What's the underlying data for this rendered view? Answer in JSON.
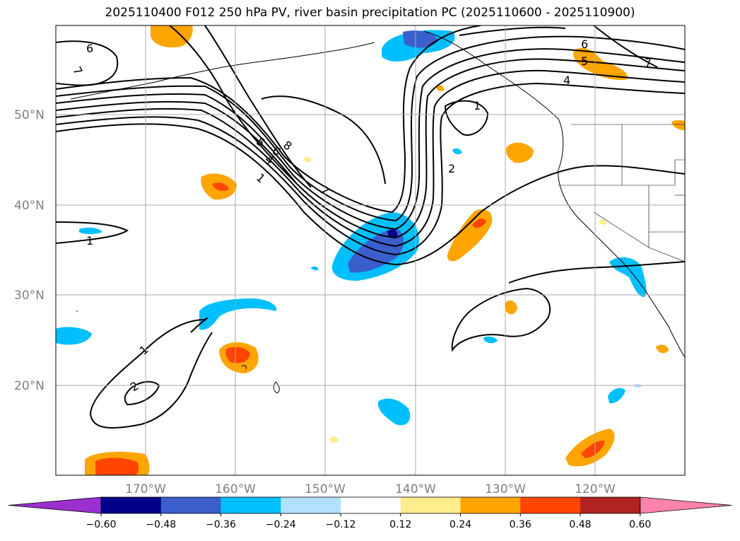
{
  "title": "2025110400 F012 250 hPa PV, river basin precipitation PC (2025110600 - 2025110900)",
  "map": {
    "lat_ticks": [
      "50°N",
      "40°N",
      "30°N",
      "20°N"
    ],
    "lon_ticks": [
      "170°W",
      "160°W",
      "150°W",
      "140°W",
      "130°W",
      "120°W"
    ],
    "pv_contour_labels": [
      "6",
      "7",
      "6",
      "7",
      "5",
      "4",
      "1",
      "2",
      "8",
      "6",
      "4",
      "5",
      "1",
      "7",
      "1",
      "1",
      "2"
    ],
    "gridlines": true
  },
  "colorbar": {
    "extend": "both",
    "ticks": [
      "−0.60",
      "−0.48",
      "−0.36",
      "−0.24",
      "−0.12",
      "0.12",
      "0.24",
      "0.36",
      "0.48",
      "0.60"
    ],
    "colors": {
      "under": "#9b30d0",
      "bins": [
        "#00008b",
        "#3a5fcd",
        "#00bfff",
        "#b0e2ff",
        "#ffffff",
        "#ffec8b",
        "#ffa500",
        "#ff4500",
        "#b22222"
      ],
      "over": "#ff82ab"
    }
  }
}
